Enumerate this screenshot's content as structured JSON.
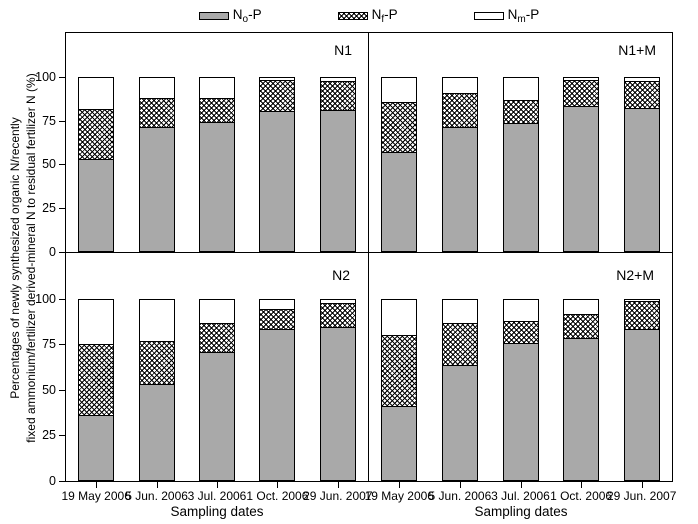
{
  "chart_data": {
    "type": "bar",
    "stacked": true,
    "title": "",
    "xlabel": "Sampling dates",
    "ylabel_lines": [
      "Percentages of newly synthesized organic N/recently",
      "fixed ammonium/fertilizer derived-mineral N to residual fertilizer N (%)"
    ],
    "categories": [
      "19 May 2006",
      "5 Jun. 2006",
      "3 Jul. 2006",
      "1 Oct. 2006",
      "29 Jun. 2007"
    ],
    "yticks": [
      0,
      25,
      50,
      75,
      100
    ],
    "ylim": [
      0,
      125
    ],
    "grid": false,
    "legend_position": "top",
    "legend": {
      "items": [
        {
          "pre": "N",
          "sub": "o",
          "post": "-P",
          "key": "gray"
        },
        {
          "pre": "N",
          "sub": "f",
          "post": "-P",
          "key": "hatch"
        },
        {
          "pre": "N",
          "sub": "m",
          "post": "-P",
          "key": "white"
        }
      ]
    },
    "colors": {
      "gray_fill": "#a9a9a9",
      "hatch_fg": "#000000",
      "white_fill": "#ffffff",
      "border": "#000000",
      "background": "#ffffff"
    },
    "panels": [
      {
        "id": "n1",
        "label": "N1",
        "series": [
          {
            "name": "No-P",
            "key": "gray",
            "values": [
              53,
              72,
              75,
              81,
              82
            ]
          },
          {
            "name": "Nf-P",
            "key": "hatch",
            "values": [
              29,
              16,
              13,
              18,
              16
            ]
          },
          {
            "name": "Nm-P",
            "key": "white",
            "values": [
              18,
              12,
              12,
              1,
              2
            ]
          }
        ]
      },
      {
        "id": "n1-m",
        "label": "N1+M",
        "series": [
          {
            "name": "No-P",
            "key": "gray",
            "values": [
              57,
              72,
              74,
              84,
              83
            ]
          },
          {
            "name": "Nf-P",
            "key": "hatch",
            "values": [
              29,
              19,
              13,
              15,
              15
            ]
          },
          {
            "name": "Nm-P",
            "key": "white",
            "values": [
              14,
              9,
              13,
              1,
              2
            ]
          }
        ]
      },
      {
        "id": "n2",
        "label": "N2",
        "series": [
          {
            "name": "No-P",
            "key": "gray",
            "values": [
              36,
              53,
              71,
              84,
              85
            ]
          },
          {
            "name": "Nf-P",
            "key": "hatch",
            "values": [
              39,
              24,
              16,
              11,
              13
            ]
          },
          {
            "name": "Nm-P",
            "key": "white",
            "values": [
              25,
              23,
              13,
              5,
              2
            ]
          }
        ]
      },
      {
        "id": "n2-m",
        "label": "N2+M",
        "series": [
          {
            "name": "No-P",
            "key": "gray",
            "values": [
              41,
              64,
              76,
              79,
              84
            ]
          },
          {
            "name": "Nf-P",
            "key": "hatch",
            "values": [
              39,
              23,
              12,
              13,
              15
            ]
          },
          {
            "name": "Nm-P",
            "key": "white",
            "values": [
              20,
              13,
              12,
              8,
              1
            ]
          }
        ]
      }
    ]
  }
}
